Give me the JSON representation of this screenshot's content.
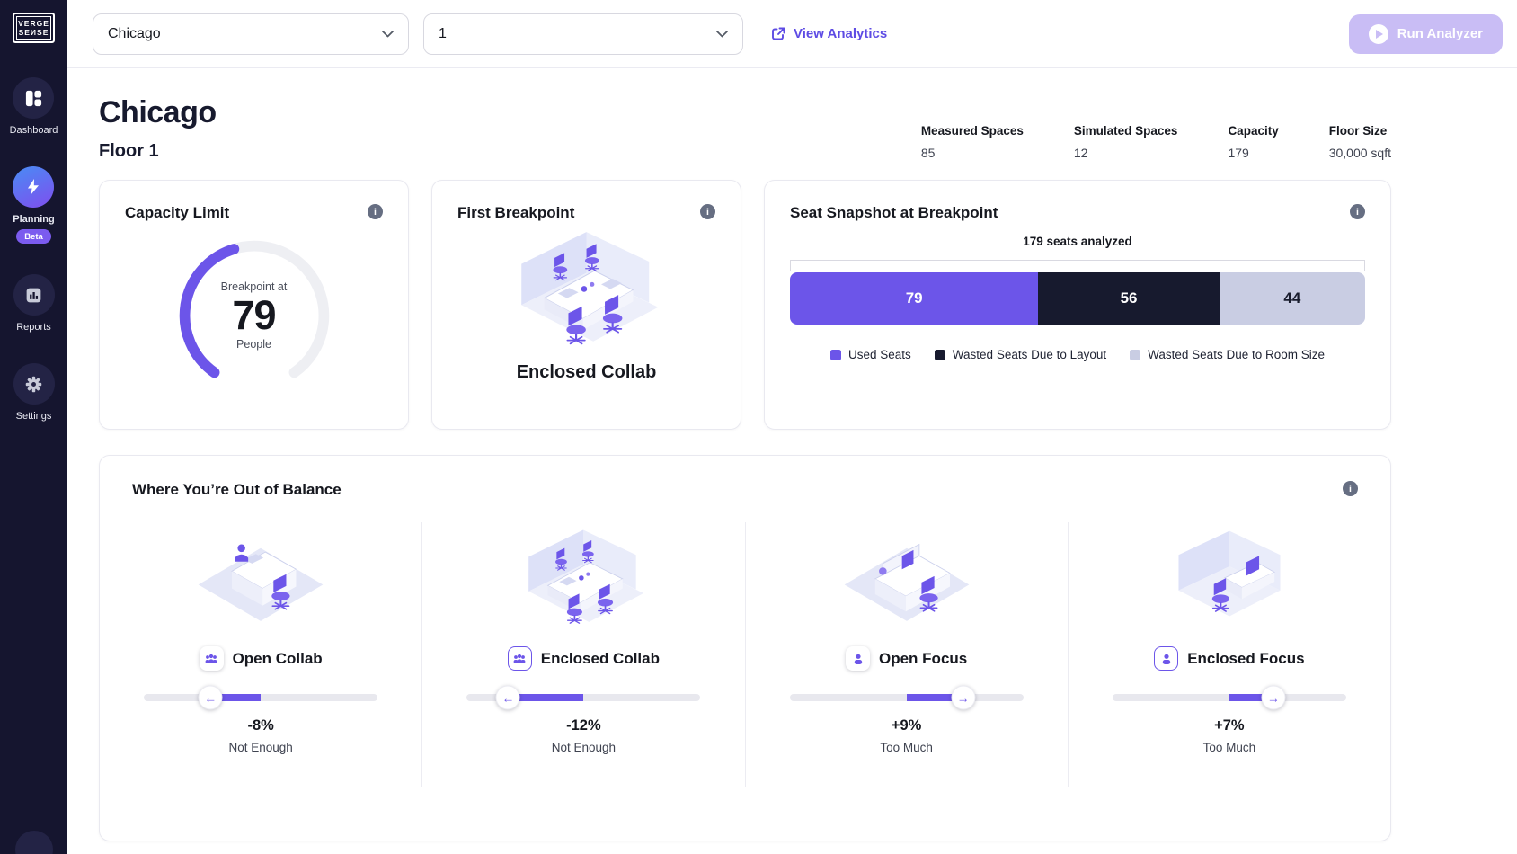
{
  "sidebar": {
    "logo_line1": "VERGE",
    "logo_line2": "SEИSE",
    "items": [
      {
        "label": "Dashboard",
        "icon": "dashboard-icon"
      },
      {
        "label": "Planning",
        "icon": "lightning-icon",
        "badge": "Beta"
      },
      {
        "label": "Reports",
        "icon": "bar-chart-icon"
      },
      {
        "label": "Settings",
        "icon": "gear-icon"
      }
    ]
  },
  "topbar": {
    "building_select_value": "Chicago",
    "floor_select_value": "1",
    "view_analytics_label": "View Analytics",
    "run_analyzer_label": "Run Analyzer"
  },
  "header": {
    "title": "Chicago",
    "subtitle": "Floor 1",
    "stats": [
      {
        "label": "Measured Spaces",
        "value": "85"
      },
      {
        "label": "Simulated Spaces",
        "value": "12"
      },
      {
        "label": "Capacity",
        "value": "179"
      },
      {
        "label": "Floor Size",
        "value": "30,000 sqft"
      }
    ]
  },
  "cards": {
    "capacity_limit": {
      "title": "Capacity Limit"
    },
    "first_breakpoint": {
      "title": "First Breakpoint",
      "value": "Enclosed Collab"
    },
    "seat_snapshot": {
      "title": "Seat Snapshot at Breakpoint"
    },
    "balance": {
      "title": "Where You’re Out of Balance",
      "items": [
        {
          "label": "Open Collab",
          "value_text": "-8%",
          "caption": "Not Enough",
          "icon": "people-icon",
          "enclosed": false
        },
        {
          "label": "Enclosed Collab",
          "value_text": "-12%",
          "caption": "Not Enough",
          "icon": "people-icon",
          "enclosed": true
        },
        {
          "label": "Open Focus",
          "value_text": "+9%",
          "caption": "Too Much",
          "icon": "person-icon",
          "enclosed": false
        },
        {
          "label": "Enclosed Focus",
          "value_text": "+7%",
          "caption": "Too Much",
          "icon": "person-icon",
          "enclosed": true
        }
      ]
    }
  },
  "colors": {
    "accent_purple": "#6C55E9",
    "link_purple": "#5D4BE4",
    "run_button_disabled": "#C9BDF5",
    "sidebar_bg": "#15152F",
    "bar_dark": "#171A2E",
    "bar_light": "#C9CDE3"
  },
  "chart_data": [
    {
      "type": "gauge",
      "title": "Capacity Limit",
      "label": "Breakpoint at",
      "value": 79,
      "max": 179,
      "unit": "People",
      "fill_color": "#6C55E9",
      "track_color": "#EEEFF3"
    },
    {
      "type": "bar",
      "variant": "horizontal-stacked",
      "title": "Seat Snapshot at Breakpoint",
      "total_label": "179 seats analyzed",
      "total": 179,
      "series": [
        {
          "name": "Used Seats",
          "value": 79,
          "color": "#6C55E9",
          "label_color": "#FFFFFF"
        },
        {
          "name": "Wasted Seats Due to Layout",
          "value": 56,
          "color": "#171A2E",
          "label_color": "#FFFFFF"
        },
        {
          "name": "Wasted Seats Due to Room Size",
          "value": 44,
          "color": "#C9CDE3",
          "label_color": "#1A1D2E"
        }
      ],
      "legend_position": "bottom"
    },
    {
      "type": "slider-group",
      "title": "Where You’re Out of Balance",
      "categories": [
        "Open Collab",
        "Enclosed Collab",
        "Open Focus",
        "Enclosed Focus"
      ],
      "values": [
        -8,
        -12,
        9,
        7
      ],
      "captions": [
        "Not Enough",
        "Not Enough",
        "Too Much",
        "Too Much"
      ],
      "unit": "%"
    }
  ]
}
